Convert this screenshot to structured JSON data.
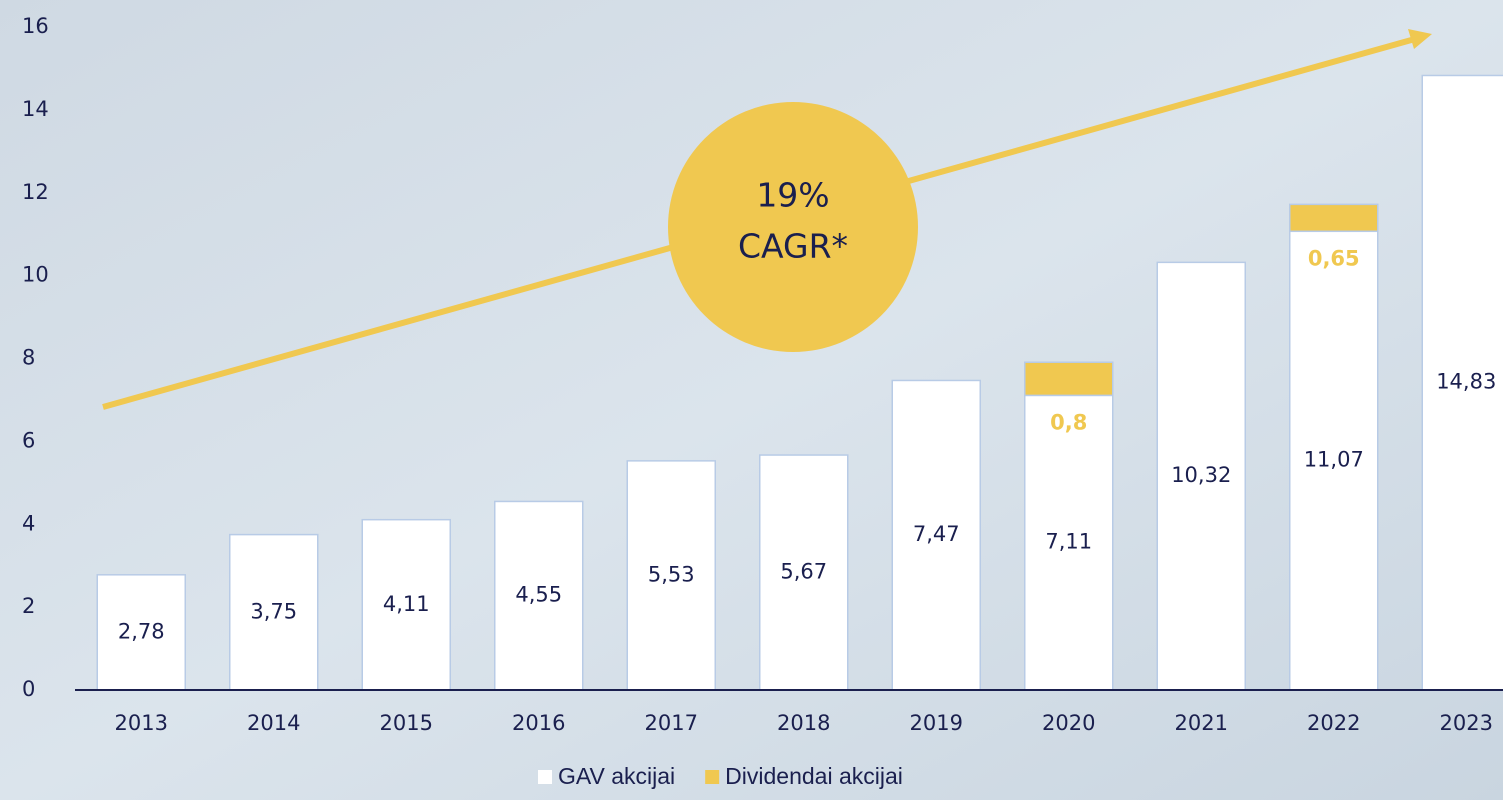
{
  "chart_data": {
    "type": "stacked_bar",
    "categories": [
      "2013",
      "2014",
      "2015",
      "2016",
      "2017",
      "2018",
      "2019",
      "2020",
      "2021",
      "2022",
      "2023"
    ],
    "series": [
      {
        "name": "GAV akcijai",
        "color": "#ffffff",
        "values": [
          2.78,
          3.75,
          4.11,
          4.55,
          5.53,
          5.67,
          7.47,
          7.11,
          10.32,
          11.07,
          14.83
        ],
        "value_labels": [
          "2,78",
          "3,75",
          "4,11",
          "4,55",
          "5,53",
          "5,67",
          "7,47",
          "7,11",
          "10,32",
          "11,07",
          "14,83"
        ]
      },
      {
        "name": "Dividendai akcijai",
        "color": "#f0c850",
        "values": [
          null,
          null,
          null,
          null,
          null,
          null,
          null,
          0.8,
          null,
          0.65,
          null
        ],
        "value_labels": [
          null,
          null,
          null,
          null,
          null,
          null,
          null,
          "0,8",
          null,
          "0,65",
          null
        ]
      }
    ],
    "ylim": [
      0,
      16
    ],
    "yticks": [
      0,
      2,
      4,
      6,
      8,
      10,
      12,
      14,
      16
    ],
    "annotations": [
      "19%",
      "CAGR*"
    ],
    "legend": "bottom"
  }
}
